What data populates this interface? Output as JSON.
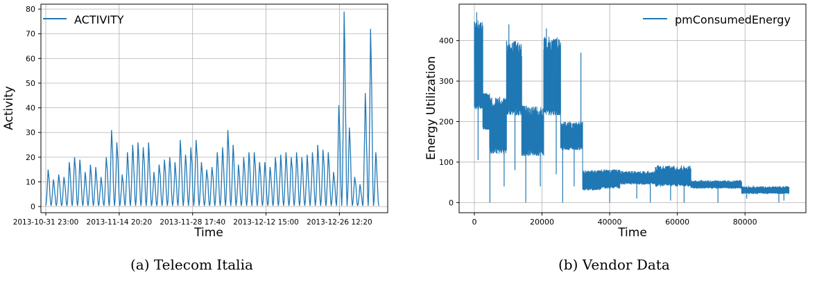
{
  "chart_data": [
    {
      "type": "line",
      "subplot": "a",
      "caption": "(a) Telecom Italia",
      "xlabel": "Time",
      "ylabel": "Activity",
      "legend": {
        "entries": [
          "ACTIVITY"
        ],
        "placement": "top-left"
      },
      "grid": true,
      "color": "#1f77b4",
      "x_tick_labels": [
        "2013-10-31 23:00",
        "2013-11-14 20:20",
        "2013-11-28 17:40",
        "2013-12-12 15:00",
        "2013-12-26 12:20"
      ],
      "x_range": [
        "2013-10-31 23:00",
        "2014-01-01 23:00"
      ],
      "yticks": [
        0,
        10,
        20,
        30,
        40,
        50,
        60,
        70,
        80
      ],
      "ylim": [
        -2.5,
        82
      ],
      "series": [
        {
          "name": "ACTIVITY",
          "daily_peaks": [
            15,
            11,
            13,
            12,
            18,
            20,
            19,
            14,
            17,
            16,
            12,
            20,
            31,
            26,
            13,
            22,
            25,
            26,
            24,
            26,
            14,
            17,
            19,
            20,
            18,
            27,
            21,
            24,
            27,
            18,
            15,
            16,
            22,
            24,
            31,
            25,
            17,
            20,
            22,
            22,
            18,
            18,
            16,
            20,
            21,
            22,
            20,
            22,
            20,
            21,
            22,
            25,
            23,
            22,
            14,
            41,
            79,
            32,
            12,
            9,
            46,
            72,
            22
          ],
          "daily_minimum": 0.3
        }
      ]
    },
    {
      "type": "line",
      "subplot": "b",
      "caption": "(b) Vendor Data",
      "xlabel": "Time",
      "ylabel": "Energy Utilization",
      "legend": {
        "entries": [
          "pmConsumedEnergy"
        ],
        "placement": "top-right"
      },
      "grid": true,
      "color": "#1f77b4",
      "xticks": [
        0,
        20000,
        40000,
        60000,
        80000
      ],
      "yticks": [
        0,
        100,
        200,
        300,
        400
      ],
      "xlim": [
        -4500,
        98000
      ],
      "ylim": [
        -25,
        490
      ],
      "series": [
        {
          "name": "pmConsumedEnergy",
          "segments": [
            {
              "x": [
                0,
                2500
              ],
              "low": 230,
              "high": 450
            },
            {
              "x": [
                2500,
                4500
              ],
              "low": 180,
              "high": 270
            },
            {
              "x": [
                4500,
                9500
              ],
              "low": 120,
              "high": 260
            },
            {
              "x": [
                9500,
                14000
              ],
              "low": 215,
              "high": 400
            },
            {
              "x": [
                14000,
                20500
              ],
              "low": 115,
              "high": 240
            },
            {
              "x": [
                20500,
                25500
              ],
              "low": 215,
              "high": 410
            },
            {
              "x": [
                25500,
                32000
              ],
              "low": 130,
              "high": 200
            },
            {
              "x": [
                32000,
                37500
              ],
              "low": 30,
              "high": 80
            },
            {
              "x": [
                37500,
                43000
              ],
              "low": 35,
              "high": 82
            },
            {
              "x": [
                43000,
                53500
              ],
              "low": 45,
              "high": 78
            },
            {
              "x": [
                53500,
                64000
              ],
              "low": 40,
              "high": 92
            },
            {
              "x": [
                64000,
                79000
              ],
              "low": 35,
              "high": 55
            },
            {
              "x": [
                79000,
                93000
              ],
              "low": 22,
              "high": 40
            }
          ],
          "spikes": [
            {
              "x": 700,
              "y": 470
            },
            {
              "x": 1100,
              "y": 105
            },
            {
              "x": 4600,
              "y": 0
            },
            {
              "x": 8800,
              "y": 40
            },
            {
              "x": 10200,
              "y": 440
            },
            {
              "x": 12000,
              "y": 80
            },
            {
              "x": 15200,
              "y": 0
            },
            {
              "x": 19500,
              "y": 40
            },
            {
              "x": 21300,
              "y": 430
            },
            {
              "x": 24200,
              "y": 70
            },
            {
              "x": 26100,
              "y": 0
            },
            {
              "x": 29500,
              "y": 40
            },
            {
              "x": 31500,
              "y": 370
            },
            {
              "x": 40000,
              "y": 0
            },
            {
              "x": 48000,
              "y": 10
            },
            {
              "x": 52000,
              "y": 0
            },
            {
              "x": 58000,
              "y": 5
            },
            {
              "x": 62000,
              "y": 0
            },
            {
              "x": 72000,
              "y": 0
            },
            {
              "x": 80500,
              "y": 10
            },
            {
              "x": 90000,
              "y": 0
            },
            {
              "x": 91500,
              "y": 5
            }
          ]
        }
      ]
    }
  ]
}
